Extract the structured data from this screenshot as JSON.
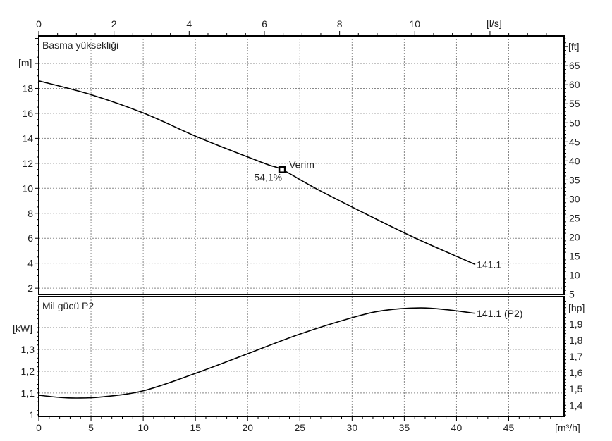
{
  "chart_data": [
    {
      "type": "line",
      "title": "Basma yüksekliği",
      "xlabel": "[m³/h]",
      "x2label": "[l/s]",
      "ylabel": "[m]",
      "y2label": "[ft]",
      "xlim": [
        0,
        50.3
      ],
      "x2lim": [
        0,
        13.97
      ],
      "ylim": [
        1.5,
        22.2
      ],
      "y2lim": [
        4.92,
        72.8
      ],
      "xticks": [
        0,
        5,
        10,
        15,
        20,
        25,
        30,
        35,
        40,
        45
      ],
      "x2ticks": [
        0,
        2,
        4,
        6,
        8,
        10
      ],
      "yticks": [
        2,
        4,
        6,
        8,
        10,
        12,
        14,
        16,
        18
      ],
      "y2ticks": [
        5,
        10,
        15,
        20,
        25,
        30,
        35,
        40,
        45,
        50,
        55,
        60,
        65
      ],
      "grid": true,
      "series": [
        {
          "name": "141.1",
          "x": [
            0,
            5,
            10.1,
            15.5,
            21.6,
            23.3,
            26.5,
            31.2,
            36.1,
            41.8
          ],
          "y": [
            18.6,
            17.5,
            16.0,
            14.0,
            12.0,
            11.5,
            10.0,
            8.0,
            6.0,
            3.9
          ]
        }
      ],
      "annotations": [
        {
          "label": "Verim",
          "value": "54,1%",
          "x": 23.3,
          "y": 11.5
        }
      ]
    },
    {
      "type": "line",
      "title": "Mil gücü P2",
      "xlabel": "[m³/h]",
      "ylabel": "[kW]",
      "y2label": "[hp]",
      "xlim": [
        0,
        50.3
      ],
      "ylim": [
        0.993,
        1.542
      ],
      "yticks": [
        "1",
        "1,1",
        "1,2",
        "1,3"
      ],
      "yticks_values": [
        1,
        1.1,
        1.2,
        1.3
      ],
      "y2ticks": [
        "1,4",
        "1,5",
        "1,6",
        "1,7",
        "1,8",
        "1,9"
      ],
      "y2ticks_values": [
        1.4,
        1.5,
        1.6,
        1.7,
        1.8,
        1.9
      ],
      "grid": true,
      "series": [
        {
          "name": "141.1 (P2)",
          "x": [
            0,
            2,
            3.7,
            6,
            10,
            15,
            20,
            25,
            30,
            33,
            36.5,
            39,
            41.8
          ],
          "y": [
            1.09,
            1.08,
            1.077,
            1.082,
            1.11,
            1.19,
            1.28,
            1.37,
            1.445,
            1.478,
            1.49,
            1.482,
            1.465
          ]
        }
      ]
    }
  ]
}
